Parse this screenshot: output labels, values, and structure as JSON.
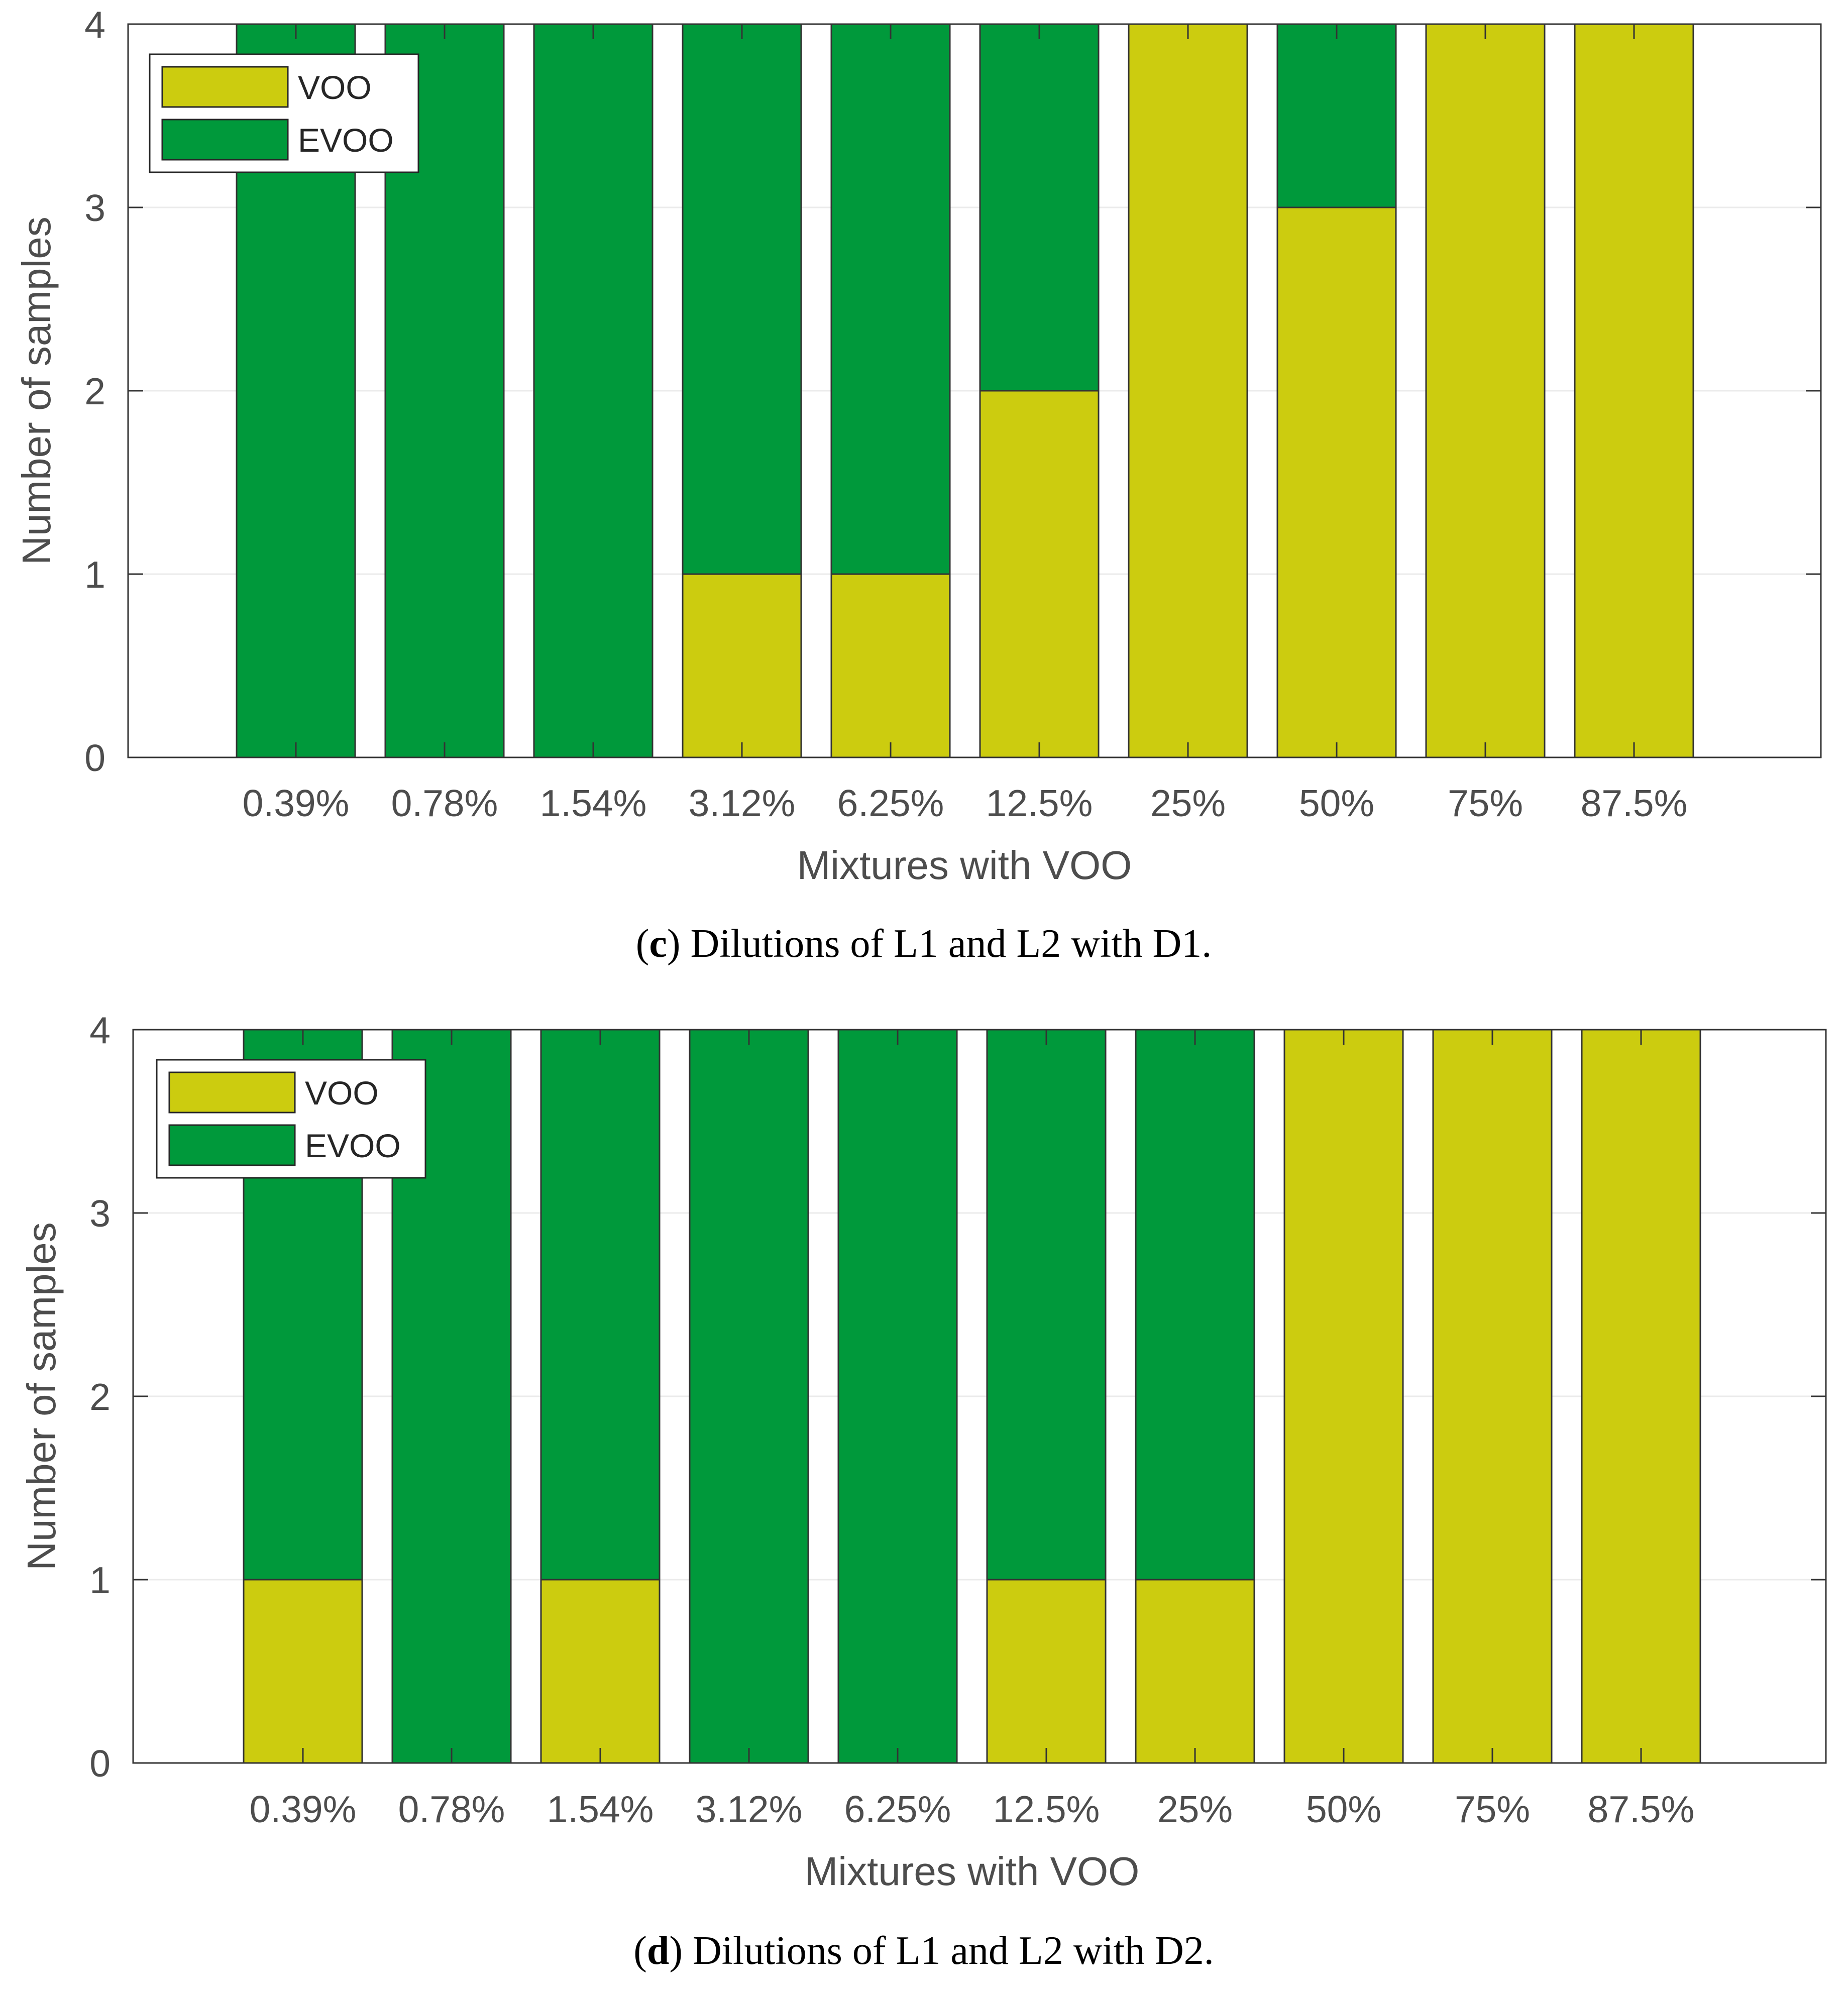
{
  "colors": {
    "voo": "#cccc0f",
    "evoo": "#00993b",
    "edge": "#333333",
    "grid": "#ebebeb",
    "axis": "#333333"
  },
  "chart_data": [
    {
      "type": "bar",
      "stacked": true,
      "categories": [
        "0.39%",
        "0.78%",
        "1.54%",
        "3.12%",
        "6.25%",
        "12.5%",
        "25%",
        "50%",
        "75%",
        "87.5%"
      ],
      "series": [
        {
          "name": "VOO",
          "values": [
            0,
            0,
            0,
            1,
            1,
            2,
            4,
            3,
            4,
            4
          ]
        },
        {
          "name": "EVOO",
          "values": [
            4,
            4,
            4,
            3,
            3,
            2,
            0,
            1,
            0,
            0
          ]
        }
      ],
      "xlabel": "Mixtures with VOO",
      "ylabel": "Number of samples",
      "ylim": [
        0,
        4
      ],
      "yticks": [
        "0",
        "1",
        "2",
        "3",
        "4"
      ],
      "grid": true,
      "legend": "top-left",
      "caption": {
        "letter": "c",
        "text": "Dilutions of L1 and L2 with D1."
      }
    },
    {
      "type": "bar",
      "stacked": true,
      "categories": [
        "0.39%",
        "0.78%",
        "1.54%",
        "3.12%",
        "6.25%",
        "12.5%",
        "25%",
        "50%",
        "75%",
        "87.5%"
      ],
      "series": [
        {
          "name": "VOO",
          "values": [
            1,
            0,
            1,
            0,
            0,
            1,
            1,
            4,
            4,
            4
          ]
        },
        {
          "name": "EVOO",
          "values": [
            3,
            4,
            3,
            4,
            4,
            3,
            3,
            0,
            0,
            0
          ]
        }
      ],
      "xlabel": "Mixtures with VOO",
      "ylabel": "Number of samples",
      "ylim": [
        0,
        4
      ],
      "yticks": [
        "0",
        "1",
        "2",
        "3",
        "4"
      ],
      "grid": true,
      "legend": "top-left",
      "caption": {
        "letter": "d",
        "text": "Dilutions of L1 and L2 with D2."
      }
    }
  ]
}
